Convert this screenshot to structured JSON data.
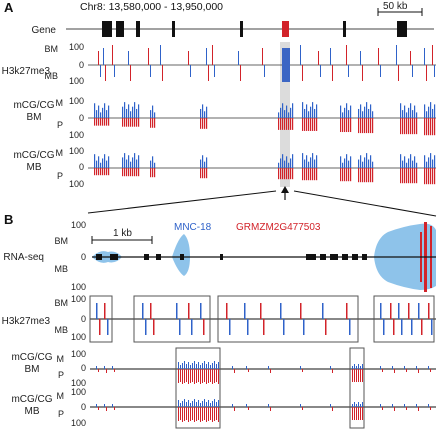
{
  "panelA": {
    "letter": "A",
    "coords": "Chr8: 13,580,000 - 13,950,000",
    "scale_label": "50 kb",
    "gene_track_label": "Gene",
    "h3k27me3": {
      "label": "H3k27me3",
      "bm": "BM",
      "mb": "MB",
      "t100a": "100",
      "t0": "0",
      "t100b": "100"
    },
    "mcg_bm": {
      "label1": "mCG/CG",
      "label2": "BM",
      "m": "M",
      "p": "P",
      "t100a": "100",
      "t0": "0",
      "t100b": "100"
    },
    "mcg_mb": {
      "label1": "mCG/CG",
      "label2": "MB",
      "m": "M",
      "p": "P",
      "t100a": "100",
      "t0": "0",
      "t100b": "100"
    }
  },
  "panelB": {
    "letter": "B",
    "scale_label": "1 kb",
    "gene_blue": "MNC-18",
    "gene_red": "GRMZM2G477503",
    "rnaseq": {
      "label": "RNA-seq",
      "bm": "BM",
      "mb": "MB",
      "t100a": "100",
      "t0": "0",
      "t100b": "100"
    },
    "h3k27me3": {
      "label": "H3k27me3",
      "bm": "BM",
      "mb": "MB",
      "t100a": "100",
      "t0": "0",
      "t100b": "100"
    },
    "mcg_bm": {
      "label1": "mCG/CG",
      "label2": "BM",
      "m": "M",
      "p": "P",
      "t100a": "100",
      "t0": "0",
      "t100b": "100"
    },
    "mcg_mb": {
      "label1": "mCG/CG",
      "label2": "MB",
      "m": "M",
      "p": "P",
      "t100a": "100",
      "t0": "0",
      "t100b": "100"
    }
  },
  "colors": {
    "blue": "#2f62c9",
    "red": "#d2232a",
    "lightblue": "#8ec3ea",
    "box": "#555555",
    "highlight": "#bbbbbb"
  }
}
